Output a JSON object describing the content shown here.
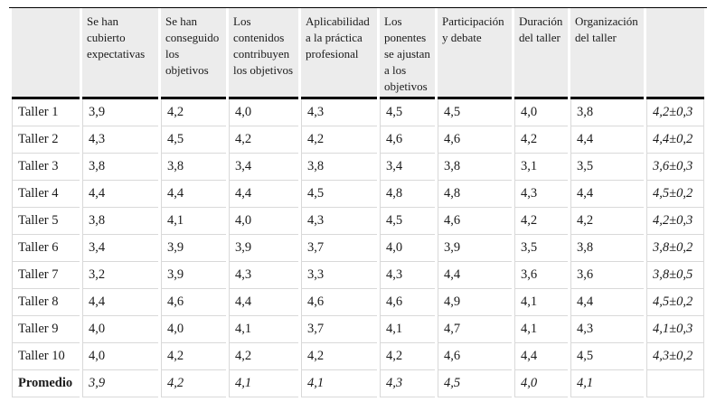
{
  "colors": {
    "header_background": "#ececec",
    "heavy_rule": "#000000",
    "grid_line": "#d9d9d9",
    "text": "#1a1a1a"
  },
  "table": {
    "columns": [
      "",
      "Se han cubierto expectativas",
      "Se han conseguido los objetivos",
      "Los contenidos contribuyen los objetivos",
      "Aplicabilidad a la práctica profesional",
      "Los ponentes se ajustan a los objetivos",
      "Participación y debate",
      "Duración del taller",
      "Organización del taller",
      ""
    ],
    "rows": [
      {
        "label": "Taller 1",
        "values": [
          "3,9",
          "4,2",
          "4,0",
          "4,3",
          "4,5",
          "4,5",
          "4,0",
          "3,8"
        ],
        "mean": "4,2±0,3",
        "is_summary": false
      },
      {
        "label": "Taller 2",
        "values": [
          "4,3",
          "4,5",
          "4,2",
          "4,2",
          "4,6",
          "4,6",
          "4,2",
          "4,4"
        ],
        "mean": "4,4±0,2",
        "is_summary": false
      },
      {
        "label": "Taller 3",
        "values": [
          "3,8",
          "3,8",
          "3,4",
          "3,8",
          "3,4",
          "3,8",
          "3,1",
          "3,5"
        ],
        "mean": "3,6±0,3",
        "is_summary": false
      },
      {
        "label": "Taller 4",
        "values": [
          "4,4",
          "4,4",
          "4,4",
          "4,5",
          "4,8",
          "4,8",
          "4,3",
          "4,4"
        ],
        "mean": "4,5±0,2",
        "is_summary": false
      },
      {
        "label": "Taller 5",
        "values": [
          "3,8",
          "4,1",
          "4,0",
          "4,3",
          "4,5",
          "4,6",
          "4,2",
          "4,2"
        ],
        "mean": "4,2±0,3",
        "is_summary": false
      },
      {
        "label": "Taller 6",
        "values": [
          "3,4",
          "3,9",
          "3,9",
          "3,7",
          "4,0",
          "3,9",
          "3,5",
          "3,8"
        ],
        "mean": "3,8±0,2",
        "is_summary": false
      },
      {
        "label": "Taller 7",
        "values": [
          "3,2",
          "3,9",
          "4,3",
          "3,3",
          "4,3",
          "4,4",
          "3,6",
          "3,6"
        ],
        "mean": "3,8±0,5",
        "is_summary": false
      },
      {
        "label": "Taller 8",
        "values": [
          "4,4",
          "4,6",
          "4,4",
          "4,6",
          "4,6",
          "4,9",
          "4,1",
          "4,4"
        ],
        "mean": "4,5±0,2",
        "is_summary": false
      },
      {
        "label": "Taller 9",
        "values": [
          "4,0",
          "4,0",
          "4,1",
          "3,7",
          "4,1",
          "4,7",
          "4,1",
          "4,3"
        ],
        "mean": "4,1±0,3",
        "is_summary": false
      },
      {
        "label": "Taller 10",
        "values": [
          "4,0",
          "4,2",
          "4,2",
          "4,2",
          "4,2",
          "4,6",
          "4,4",
          "4,5"
        ],
        "mean": "4,3±0,2",
        "is_summary": false
      },
      {
        "label": "Promedio",
        "values": [
          "3,9",
          "4,2",
          "4,1",
          "4,1",
          "4,3",
          "4,5",
          "4,0",
          "4,1"
        ],
        "mean": "",
        "is_summary": true
      }
    ]
  }
}
